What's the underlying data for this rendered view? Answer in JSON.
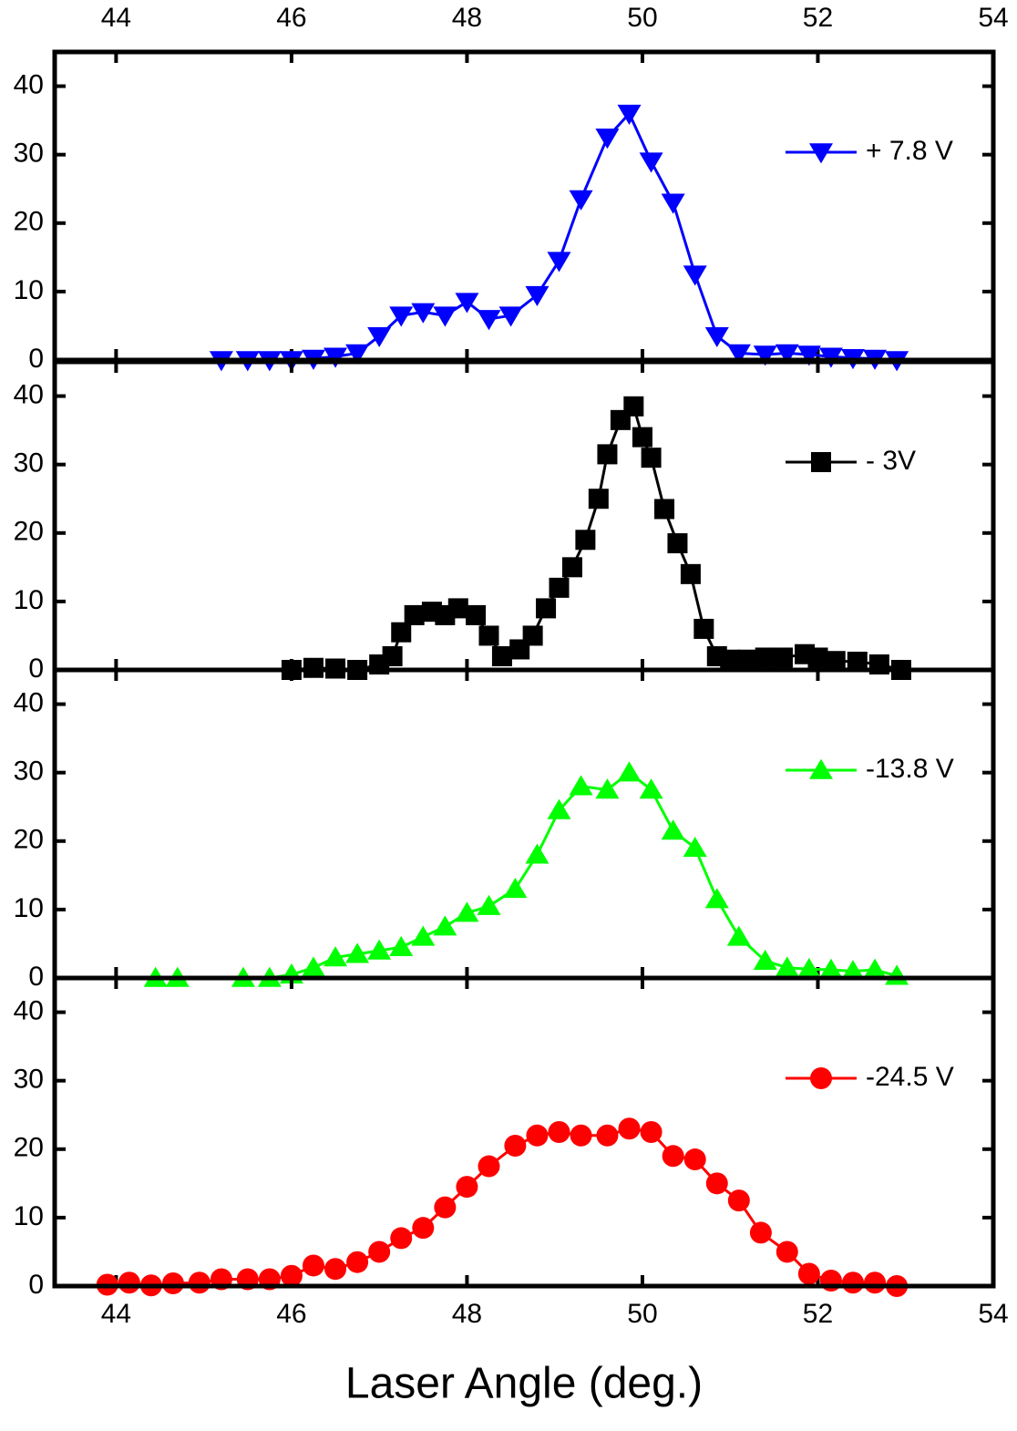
{
  "chart_data": [
    {
      "type": "line",
      "legend": "upper right",
      "x": [
        45.2,
        45.5,
        45.75,
        46.0,
        46.25,
        46.5,
        46.75,
        47.0,
        47.25,
        47.5,
        47.75,
        48.0,
        48.25,
        48.5,
        48.8,
        49.05,
        49.3,
        49.6,
        49.85,
        50.1,
        50.35,
        50.6,
        50.85,
        51.1,
        51.4,
        51.65,
        51.9,
        52.15,
        52.4,
        52.65,
        52.9
      ],
      "series": [
        {
          "name": "+ 7.8 V",
          "color": "#0000ff",
          "marker": "triangle-down",
          "values": [
            0,
            0,
            0,
            0,
            0.2,
            0.5,
            1,
            3.5,
            6.5,
            7,
            6.5,
            8.5,
            6,
            6.5,
            9.5,
            14.5,
            23.5,
            32.5,
            36,
            29,
            23,
            12.5,
            3.5,
            1,
            0.8,
            1,
            0.8,
            0.5,
            0.3,
            0.2,
            0
          ]
        }
      ],
      "xlim": [
        43.3,
        54
      ],
      "xticks": [
        44,
        46,
        48,
        50,
        52,
        54
      ],
      "ylim": [
        0,
        45
      ],
      "yticks": [
        0,
        10,
        20,
        30,
        40
      ]
    },
    {
      "type": "line",
      "legend": "upper right",
      "x": [
        46.0,
        46.25,
        46.5,
        46.75,
        47.0,
        47.15,
        47.25,
        47.4,
        47.6,
        47.75,
        47.9,
        48.1,
        48.25,
        48.4,
        48.6,
        48.75,
        48.9,
        49.05,
        49.2,
        49.35,
        49.5,
        49.6,
        49.75,
        49.9,
        50.0,
        50.1,
        50.25,
        50.4,
        50.55,
        50.7,
        50.85,
        51.0,
        51.2,
        51.4,
        51.6,
        51.85,
        52.0,
        52.2,
        52.45,
        52.7,
        52.95
      ],
      "series": [
        {
          "name": "- 3V",
          "color": "#000000",
          "marker": "square",
          "values": [
            0,
            0.3,
            0.2,
            0,
            0.8,
            2,
            5.5,
            8,
            8.5,
            8,
            9,
            8,
            5,
            2,
            3,
            5,
            9,
            12,
            15,
            19,
            25,
            31.5,
            36.5,
            38.5,
            34,
            31,
            23.5,
            18.5,
            14,
            6,
            2,
            1.5,
            1.5,
            1.8,
            1.8,
            2.3,
            1.8,
            1.3,
            1.2,
            0.8,
            0
          ]
        }
      ],
      "xlim": [
        43.3,
        54
      ],
      "ylim": [
        0,
        45
      ],
      "yticks": [
        0,
        10,
        20,
        30,
        40
      ]
    },
    {
      "type": "line",
      "legend": "upper right",
      "x": [
        44.45,
        44.7,
        45.45,
        45.75,
        46.0,
        46.25,
        46.5,
        46.75,
        47.0,
        47.25,
        47.5,
        47.75,
        48.0,
        48.25,
        48.55,
        48.8,
        49.05,
        49.3,
        49.6,
        49.85,
        50.1,
        50.35,
        50.6,
        50.85,
        51.1,
        51.4,
        51.65,
        51.9,
        52.15,
        52.4,
        52.65,
        52.9
      ],
      "series": [
        {
          "name": "-13.8 V",
          "color": "#00ff00",
          "marker": "triangle-up",
          "values": [
            0,
            0,
            0,
            0,
            0.5,
            1.5,
            3,
            3.5,
            4,
            4.5,
            6,
            7.5,
            9.5,
            10.5,
            13,
            18,
            24.5,
            28,
            27.5,
            30,
            27.5,
            21.5,
            19,
            11.5,
            6,
            2.5,
            1.5,
            1.3,
            1.2,
            1,
            1.2,
            0.3
          ]
        }
      ],
      "xlim": [
        43.3,
        54
      ],
      "ylim": [
        0,
        45
      ],
      "yticks": [
        0,
        10,
        20,
        30,
        40
      ]
    },
    {
      "type": "line",
      "legend": "upper right",
      "x_label": "Laser Angle (deg.)",
      "x": [
        43.9,
        44.15,
        44.4,
        44.65,
        44.95,
        45.2,
        45.5,
        45.75,
        46.0,
        46.25,
        46.5,
        46.75,
        47.0,
        47.25,
        47.5,
        47.75,
        48.0,
        48.25,
        48.55,
        48.8,
        49.05,
        49.3,
        49.6,
        49.85,
        50.1,
        50.35,
        50.6,
        50.85,
        51.1,
        51.35,
        51.65,
        51.9,
        52.15,
        52.4,
        52.65,
        52.9
      ],
      "series": [
        {
          "name": "-24.5 V",
          "color": "#ff0000",
          "marker": "circle",
          "values": [
            0.2,
            0.5,
            0.1,
            0.4,
            0.5,
            1,
            1,
            1,
            1.5,
            3,
            2.5,
            3.5,
            5,
            7,
            8.5,
            11.5,
            14.5,
            17.5,
            20.5,
            22,
            22.5,
            22,
            22,
            23,
            22.5,
            19,
            18.5,
            15,
            12.5,
            7.8,
            5,
            1.8,
            0.8,
            0.5,
            0.5,
            0
          ]
        }
      ],
      "xlim": [
        43.3,
        54
      ],
      "xticks": [
        44,
        46,
        48,
        50,
        52,
        54
      ],
      "ylim": [
        0,
        45
      ],
      "yticks": [
        0,
        10,
        20,
        30,
        40
      ]
    }
  ]
}
